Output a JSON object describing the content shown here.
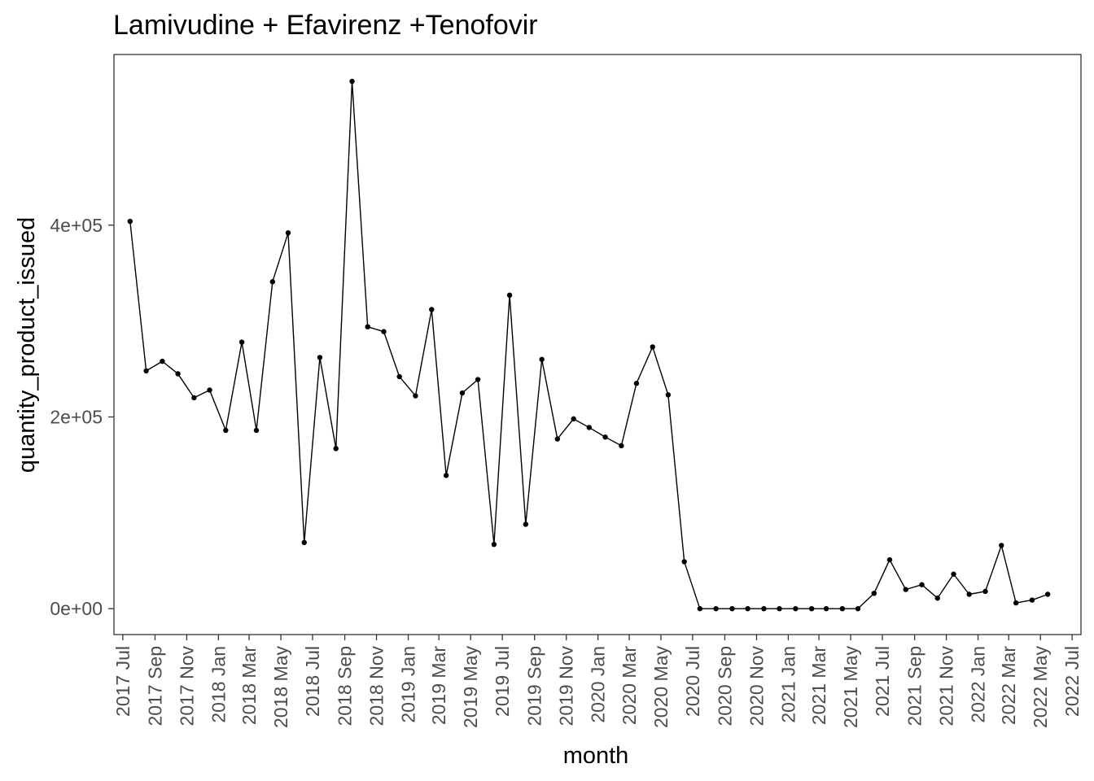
{
  "chart_data": {
    "type": "line",
    "title": "Lamivudine  + Efavirenz +Tenofovir",
    "xlabel": "month",
    "ylabel": "quantity_product_issued",
    "grid": false,
    "legend": "none",
    "line_color": "#000000",
    "point_color": "#000000",
    "y_ticks": [
      0,
      200000,
      400000
    ],
    "y_tick_labels": [
      "0e+00",
      "2e+05",
      "4e+05"
    ],
    "ylim": [
      -27000,
      578000
    ],
    "xlim": [
      "2017-06-14",
      "2022-07-18"
    ],
    "x_ticks": [
      "2017-07-01",
      "2017-09-01",
      "2017-11-01",
      "2018-01-01",
      "2018-03-01",
      "2018-05-01",
      "2018-07-01",
      "2018-09-01",
      "2018-11-01",
      "2019-01-01",
      "2019-03-01",
      "2019-05-01",
      "2019-07-01",
      "2019-09-01",
      "2019-11-01",
      "2020-01-01",
      "2020-03-01",
      "2020-05-01",
      "2020-07-01",
      "2020-09-01",
      "2020-11-01",
      "2021-01-01",
      "2021-03-01",
      "2021-05-01",
      "2021-07-01",
      "2021-09-01",
      "2021-11-01",
      "2022-01-01",
      "2022-03-01",
      "2022-05-01",
      "2022-07-01"
    ],
    "x_tick_labels": [
      "2017 Jul",
      "2017 Sep",
      "2017 Nov",
      "2018 Jan",
      "2018 Mar",
      "2018 May",
      "2018 Jul",
      "2018 Sep",
      "2018 Nov",
      "2019 Jan",
      "2019 Mar",
      "2019 May",
      "2019 Jul",
      "2019 Sep",
      "2019 Nov",
      "2020 Jan",
      "2020 Mar",
      "2020 May",
      "2020 Jul",
      "2020 Sep",
      "2020 Nov",
      "2021 Jan",
      "2021 Mar",
      "2021 May",
      "2021 Jul",
      "2021 Sep",
      "2021 Nov",
      "2022 Jan",
      "2022 Mar",
      "2022 May",
      "2022 Jul"
    ],
    "series": [
      {
        "x": [
          "2017-07-15",
          "2017-08-15",
          "2017-09-15",
          "2017-10-15",
          "2017-11-15",
          "2017-12-15",
          "2018-01-15",
          "2018-02-15",
          "2018-03-15",
          "2018-04-15",
          "2018-05-15",
          "2018-06-15",
          "2018-07-15",
          "2018-08-15",
          "2018-09-15",
          "2018-10-15",
          "2018-11-15",
          "2018-12-15",
          "2019-01-15",
          "2019-02-15",
          "2019-03-15",
          "2019-04-15",
          "2019-05-15",
          "2019-06-15",
          "2019-07-15",
          "2019-08-15",
          "2019-09-15",
          "2019-10-15",
          "2019-11-15",
          "2019-12-15",
          "2020-01-15",
          "2020-02-15",
          "2020-03-15",
          "2020-04-15",
          "2020-05-15",
          "2020-06-15",
          "2020-07-15",
          "2020-08-15",
          "2020-09-15",
          "2020-10-15",
          "2020-11-15",
          "2020-12-15",
          "2021-01-15",
          "2021-02-15",
          "2021-03-15",
          "2021-04-15",
          "2021-05-15",
          "2021-06-15",
          "2021-07-15",
          "2021-08-15",
          "2021-09-15",
          "2021-10-15",
          "2021-11-15",
          "2021-12-15",
          "2022-01-15",
          "2022-02-15",
          "2022-03-15",
          "2022-04-15",
          "2022-05-15"
        ],
        "values": [
          404000,
          248000,
          258000,
          245000,
          220000,
          228000,
          186000,
          278000,
          186000,
          341000,
          392000,
          69000,
          262000,
          167000,
          550000,
          294000,
          289000,
          242000,
          222000,
          312000,
          139000,
          225000,
          239000,
          67000,
          327000,
          88000,
          260000,
          177000,
          198000,
          189000,
          179000,
          170000,
          235000,
          273000,
          223000,
          49000,
          0,
          0,
          0,
          0,
          0,
          0,
          0,
          0,
          0,
          0,
          0,
          16000,
          51000,
          20000,
          25000,
          11000,
          36000,
          15000,
          18000,
          66000,
          6000,
          9000,
          15000
        ]
      }
    ]
  }
}
